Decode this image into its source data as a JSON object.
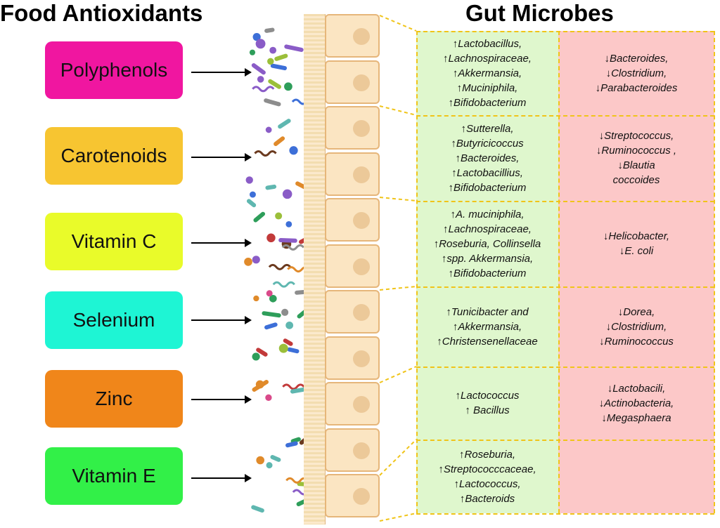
{
  "titles": {
    "left": "Food Antioxidants",
    "right": "Gut Microbes"
  },
  "nutrients": [
    {
      "label": "Polyphenols",
      "color": "#f016a0"
    },
    {
      "label": "Carotenoids",
      "color": "#f7c531"
    },
    {
      "label": "Vitamin C",
      "color": "#e9fb2a"
    },
    {
      "label": "Selenium",
      "color": "#1ef5d4"
    },
    {
      "label": "Zinc",
      "color": "#f0861a"
    },
    {
      "label": "Vitamin E",
      "color": "#32f048"
    }
  ],
  "microbes": [
    {
      "increase": [
        "↑Lactobacillus,",
        "↑Lachnospiraceae,",
        "↑Akkermansia,",
        "↑Muciniphila,",
        "↑Bifidobacterium"
      ],
      "decrease": [
        "↓Bacteroides,",
        "↓Clostridium,",
        "↓Parabacteroides"
      ]
    },
    {
      "increase": [
        "↑Sutterella,",
        "↑Butyricicoccus",
        "↑Bacteroides,",
        "↑Lactobacillius,",
        "↑Bifidobacterium"
      ],
      "decrease": [
        "↓Streptococcus,",
        "↓Ruminococcus ,",
        "↓Blautia",
        "coccoides"
      ]
    },
    {
      "increase": [
        "↑A. muciniphila,",
        "↑Lachnospiraceae,",
        "↑Roseburia, Collinsella",
        "↑spp. Akkermansia,",
        "↑Bifidobacterium"
      ],
      "decrease": [
        "↓Helicobacter,",
        "↓E. coli"
      ]
    },
    {
      "increase": [
        "↑Tunicibacter and",
        "↑Akkermansia,",
        "↑Christensenellaceae"
      ],
      "decrease": [
        "↓Dorea,",
        "↓Clostridium,",
        "↓Ruminococcus"
      ]
    },
    {
      "increase": [
        "↑Lactococcus",
        "↑ Bacillus"
      ],
      "decrease": [
        "↓Lactobacili,",
        "↓Actinobacteria,",
        "↓Megasphaera"
      ]
    },
    {
      "increase": [
        "↑Roseburia,",
        "↑Streptococccaceae,",
        "↑Lactococcus,",
        "↑Bacteroids"
      ],
      "decrease": []
    }
  ],
  "colors": {
    "increase_bg": "#dff7cd",
    "decrease_bg": "#fcc8c8",
    "divider": "#f0c419"
  }
}
